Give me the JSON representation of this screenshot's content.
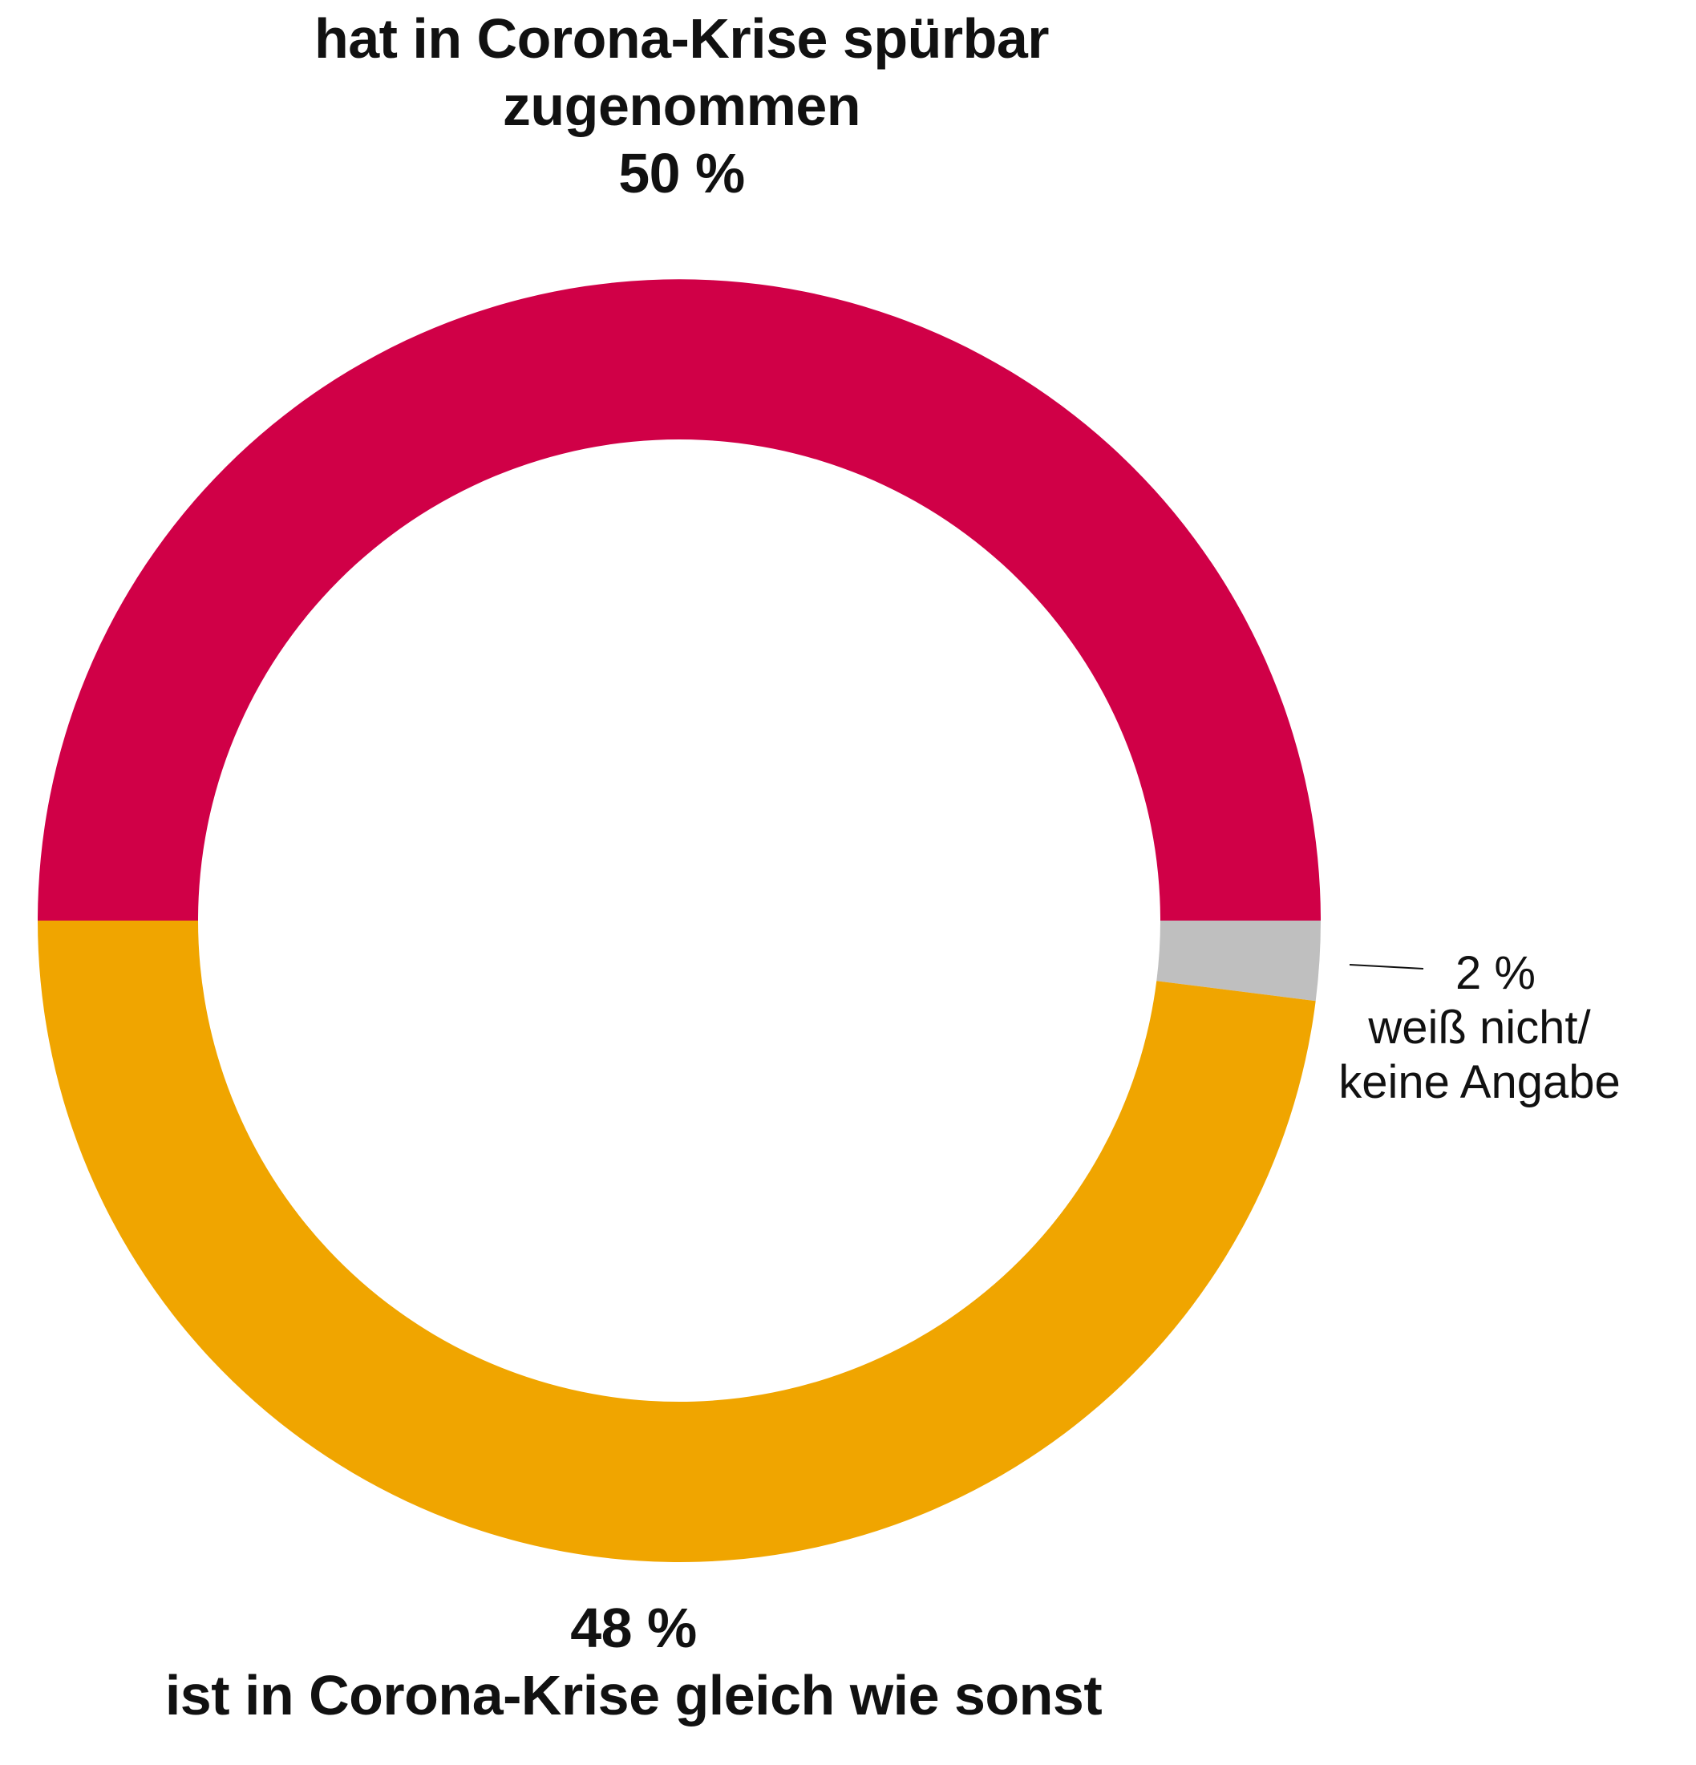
{
  "chart_data": {
    "type": "pie",
    "variant": "donut",
    "slices": [
      {
        "label_lines": [
          "hat in Corona-Krise spürbar",
          "zugenommen"
        ],
        "value_label": "50 %",
        "value": 50,
        "color": "#d00047"
      },
      {
        "label_lines": [
          "weiß nicht/",
          "keine Angabe"
        ],
        "value_label": "2 %",
        "value": 2,
        "color": "#bfbfbf"
      },
      {
        "label_lines": [
          "ist in Corona-Krise gleich wie sonst"
        ],
        "value_label": "48 %",
        "value": 48,
        "color": "#f0a500"
      }
    ]
  }
}
